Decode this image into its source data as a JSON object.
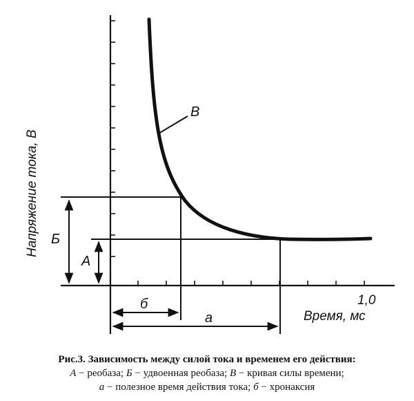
{
  "figure": {
    "y_axis_label": "Напряжение тока, В",
    "x_axis_label": "Время, мс",
    "x_tick_label": "1,0",
    "curve_label": "В",
    "label_a_upper": "А",
    "label_b_upper": "Б",
    "label_b_lower": "б",
    "label_a_lower": "а"
  },
  "chart_data": {
    "type": "line",
    "title": "",
    "xlabel": "Время, мс",
    "ylabel": "Напряжение тока, В",
    "x_ticks": [
      "1,0"
    ],
    "series": [
      {
        "name": "В",
        "description_label": "кривая силы времени",
        "x": [
          0.15,
          0.17,
          0.2,
          0.25,
          0.3,
          0.4,
          0.5,
          0.65,
          0.8,
          1.0
        ],
        "y": [
          10.5,
          6.6,
          4.3,
          2.8,
          2.1,
          1.5,
          1.25,
          1.05,
          1.01,
          1.0
        ]
      }
    ],
    "annotations": [
      {
        "label": "А",
        "meaning": "реобаза",
        "value_y": 1.0
      },
      {
        "label": "Б",
        "meaning": "удвоенная реобаза",
        "value_y": 2.0
      },
      {
        "label": "б",
        "meaning": "хронаксия",
        "value_x": 0.27
      },
      {
        "label": "а",
        "meaning": "полезное время действия тока",
        "value_x": 0.65
      }
    ]
  },
  "caption": {
    "title": "Рис.3. Зависимость между силой тока и временем его действия:",
    "line2_a": "А",
    "line2_a_text": " − реобаза; ",
    "line2_b": "Б",
    "line2_b_text": " − удвоенная реобаза; ",
    "line2_c": "В",
    "line2_c_text": " − кривая силы времени;",
    "line3_a": "а",
    "line3_a_text": " − полезное время действия тока; ",
    "line3_b": "б",
    "line3_b_text": " − хронаксия"
  }
}
